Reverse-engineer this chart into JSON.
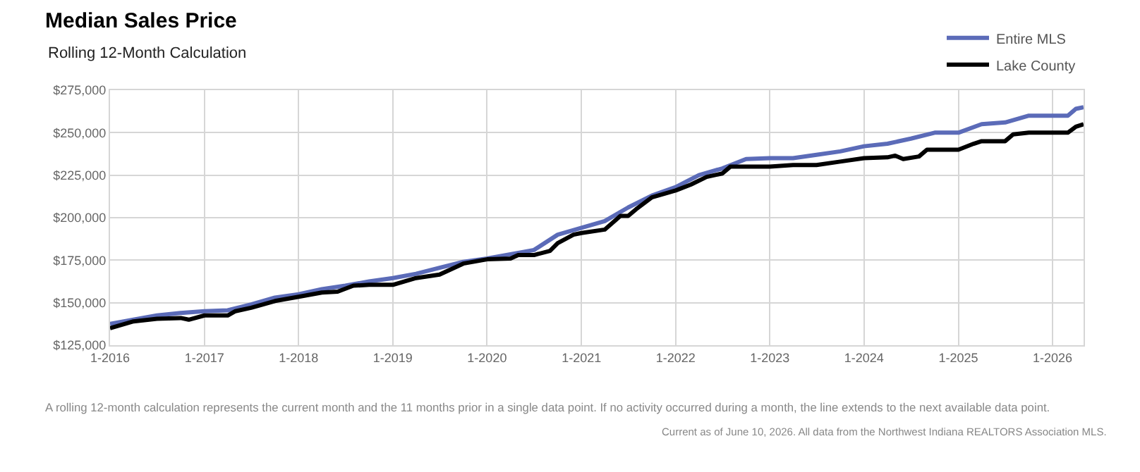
{
  "chart_data": {
    "type": "line",
    "title": "Median Sales Price",
    "subtitle": "Rolling 12-Month Calculation",
    "annotations": [
      "A rolling 12-month calculation represents the current month and the 11 months prior in a single data point. If no activity occurred during a month, the line extends to the next available data point.",
      "Current as of June 10, 2026. All data from the Northwest Indiana REALTORS Association MLS."
    ],
    "series": [
      {
        "name": "Entire MLS",
        "color": "#5b6bb8",
        "x": [
          "2016-01",
          "2016-04",
          "2016-07",
          "2016-10",
          "2017-01",
          "2017-04",
          "2017-07",
          "2017-10",
          "2018-01",
          "2018-04",
          "2018-07",
          "2018-10",
          "2019-01",
          "2019-04",
          "2019-07",
          "2019-10",
          "2020-01",
          "2020-04",
          "2020-07",
          "2020-10",
          "2021-01",
          "2021-04",
          "2021-07",
          "2021-10",
          "2022-01",
          "2022-04",
          "2022-07",
          "2022-10",
          "2023-01",
          "2023-04",
          "2023-07",
          "2023-10",
          "2024-01",
          "2024-04",
          "2024-07",
          "2024-10",
          "2025-01",
          "2025-04",
          "2025-07",
          "2025-10",
          "2026-01",
          "2026-03",
          "2026-04",
          "2026-05"
        ],
        "values": [
          137500,
          140000,
          142500,
          144000,
          145000,
          145500,
          149000,
          153000,
          155000,
          158000,
          160000,
          162500,
          164500,
          167000,
          170500,
          174000,
          176000,
          178500,
          181000,
          190000,
          194000,
          198000,
          206000,
          213000,
          218000,
          225000,
          229000,
          234500,
          235000,
          235000,
          237000,
          239000,
          242000,
          243500,
          246500,
          250000,
          250000,
          255000,
          256000,
          260000,
          260000,
          260000,
          264000,
          265000
        ]
      },
      {
        "name": "Lake County",
        "color": "#000000",
        "x": [
          "2016-01",
          "2016-04",
          "2016-07",
          "2016-10",
          "2016-11",
          "2017-01",
          "2017-04",
          "2017-05",
          "2017-07",
          "2017-10",
          "2018-01",
          "2018-04",
          "2018-06",
          "2018-08",
          "2018-10",
          "2019-01",
          "2019-04",
          "2019-07",
          "2019-10",
          "2020-01",
          "2020-04",
          "2020-05",
          "2020-07",
          "2020-09",
          "2020-10",
          "2020-12",
          "2021-01",
          "2021-04",
          "2021-06",
          "2021-07",
          "2021-08",
          "2021-10",
          "2022-01",
          "2022-03",
          "2022-05",
          "2022-07",
          "2022-08",
          "2023-01",
          "2023-04",
          "2023-07",
          "2023-10",
          "2024-01",
          "2024-04",
          "2024-05",
          "2024-06",
          "2024-08",
          "2024-09",
          "2025-01",
          "2025-03",
          "2025-04",
          "2025-07",
          "2025-08",
          "2025-10",
          "2026-03",
          "2026-04",
          "2026-05"
        ],
        "values": [
          135000,
          139000,
          140500,
          141000,
          140000,
          142500,
          142500,
          145000,
          147000,
          151000,
          153500,
          156000,
          156500,
          160000,
          160500,
          160500,
          164500,
          166500,
          173000,
          175500,
          176000,
          178000,
          178000,
          180500,
          185000,
          190000,
          191000,
          193000,
          201000,
          201000,
          205000,
          212000,
          216000,
          219500,
          224000,
          226000,
          230000,
          230000,
          231000,
          231000,
          233000,
          235000,
          235500,
          236500,
          234500,
          236000,
          240000,
          240000,
          243500,
          245000,
          245000,
          249000,
          250000,
          250000,
          253500,
          255000
        ]
      }
    ],
    "xlim": [
      "2016-01",
      "2026-05"
    ],
    "xticks": [
      {
        "value": "2016-01",
        "label": "1-2016"
      },
      {
        "value": "2017-01",
        "label": "1-2017"
      },
      {
        "value": "2018-01",
        "label": "1-2018"
      },
      {
        "value": "2019-01",
        "label": "1-2019"
      },
      {
        "value": "2020-01",
        "label": "1-2020"
      },
      {
        "value": "2021-01",
        "label": "1-2021"
      },
      {
        "value": "2022-01",
        "label": "1-2022"
      },
      {
        "value": "2023-01",
        "label": "1-2023"
      },
      {
        "value": "2024-01",
        "label": "1-2024"
      },
      {
        "value": "2025-01",
        "label": "1-2025"
      },
      {
        "value": "2026-01",
        "label": "1-2026"
      }
    ],
    "ylim": [
      125000,
      275000
    ],
    "yticks": [
      {
        "value": 125000,
        "label": "$125,000"
      },
      {
        "value": 150000,
        "label": "$150,000"
      },
      {
        "value": 175000,
        "label": "$175,000"
      },
      {
        "value": 200000,
        "label": "$200,000"
      },
      {
        "value": 225000,
        "label": "$225,000"
      },
      {
        "value": 250000,
        "label": "$250,000"
      },
      {
        "value": 275000,
        "label": "$275,000"
      }
    ],
    "grid": true,
    "legend": "top right",
    "marker": "none",
    "line_style": "solid"
  }
}
